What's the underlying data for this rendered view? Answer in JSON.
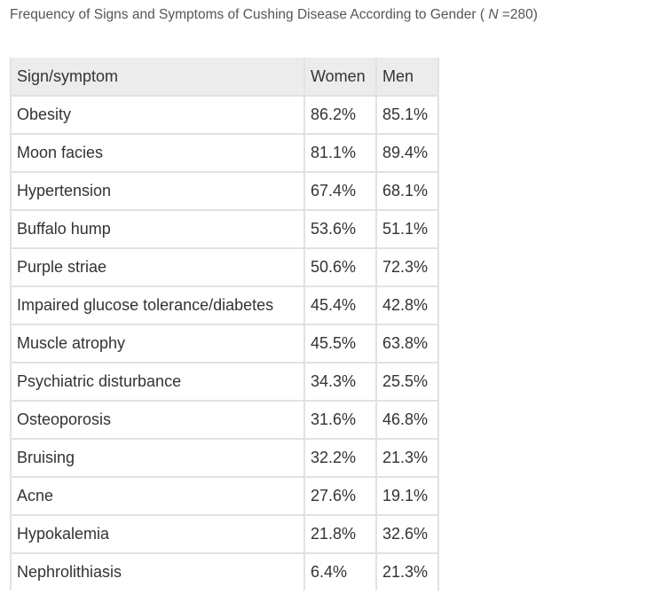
{
  "caption": {
    "prefix": "Frequency of Signs and Symptoms of Cushing Disease According to Gender ( ",
    "n_symbol": "N",
    "suffix": " =280)"
  },
  "table": {
    "headers": [
      "Sign/symptom",
      "Women",
      "Men"
    ],
    "rows": [
      [
        "Obesity",
        "86.2%",
        "85.1%"
      ],
      [
        "Moon facies",
        "81.1%",
        "89.4%"
      ],
      [
        "Hypertension",
        "67.4%",
        "68.1%"
      ],
      [
        "Buffalo hump",
        "53.6%",
        "51.1%"
      ],
      [
        "Purple striae",
        "50.6%",
        "72.3%"
      ],
      [
        "Impaired glucose tolerance/diabetes",
        "45.4%",
        "42.8%"
      ],
      [
        "Muscle atrophy",
        "45.5%",
        "63.8%"
      ],
      [
        "Psychiatric disturbance",
        "34.3%",
        "25.5%"
      ],
      [
        "Osteoporosis",
        "31.6%",
        "46.8%"
      ],
      [
        "Bruising",
        "32.2%",
        "21.3%"
      ],
      [
        "Acne",
        "27.6%",
        "19.1%"
      ],
      [
        "Hypokalemia",
        "21.8%",
        "32.6%"
      ],
      [
        "Nephrolithiasis",
        "6.4%",
        "21.3%"
      ]
    ]
  }
}
